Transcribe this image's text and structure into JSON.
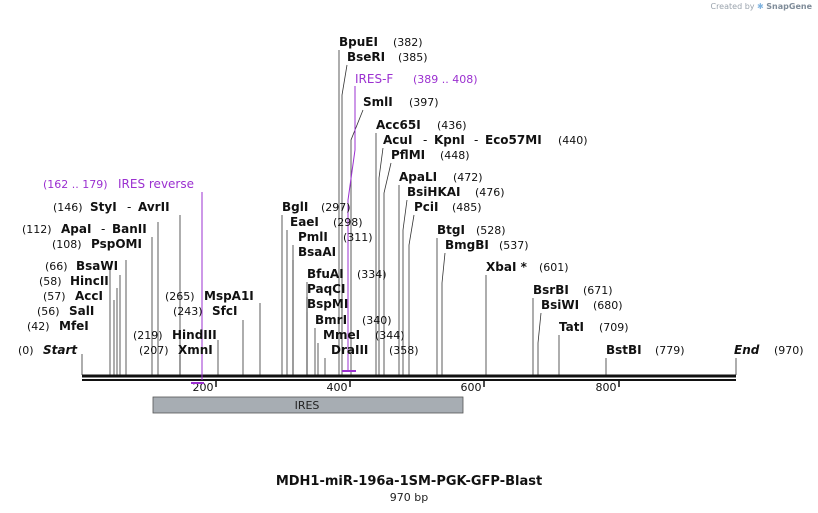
{
  "watermark": {
    "prefix": "Created by",
    "brand": "SnapGene"
  },
  "map": {
    "name": "MDH1-miR-196a-1SM-PGK-GFP-Blast",
    "length_label": "970 bp",
    "length": 970,
    "start_label": "Start",
    "start_pos": "(0)",
    "end_label": "End",
    "end_pos": "(970)",
    "ticks": [
      "200",
      "400",
      "600",
      "800"
    ],
    "feature_label": "IRES",
    "feature_color": "#a7adb3",
    "primer_color": "#9b30d0"
  },
  "primers": [
    {
      "name": "IRES reverse",
      "range": "(162 .. 179)"
    },
    {
      "name": "IRES-F",
      "range": "(389 .. 408)"
    }
  ],
  "enzymes_left": [
    {
      "name": "StyI",
      "pos": "(146)",
      "name2": "AvrII"
    },
    {
      "name": "ApaI",
      "pos": "(112)",
      "name2": "BanII"
    },
    {
      "name": "PspOMI",
      "pos": "(108)"
    },
    {
      "name": "BsaWI",
      "pos": "(66)"
    },
    {
      "name": "HincII",
      "pos": "(58)"
    },
    {
      "name": "AccI",
      "pos": "(57)"
    },
    {
      "name": "SalI",
      "pos": "(56)"
    },
    {
      "name": "MfeI",
      "pos": "(42)"
    },
    {
      "name": "MspA1I",
      "pos": "(265)"
    },
    {
      "name": "SfcI",
      "pos": "(243)"
    },
    {
      "name": "HindIII",
      "pos": "(219)"
    },
    {
      "name": "XmnI",
      "pos": "(207)"
    }
  ],
  "enzymes_center": [
    {
      "name": "BpuEI",
      "pos": "(382)"
    },
    {
      "name": "BseRI",
      "pos": "(385)"
    },
    {
      "name": "SmlI",
      "pos": "(397)"
    },
    {
      "name": "Acc65I",
      "pos": "(436)"
    },
    {
      "name": "AcuI",
      "name2": "KpnI",
      "name3": "Eco57MI",
      "pos": "(440)"
    },
    {
      "name": "PflMI",
      "pos": "(448)"
    },
    {
      "name": "ApaLI",
      "pos": "(472)"
    },
    {
      "name": "BsiHKAI",
      "pos": "(476)"
    },
    {
      "name": "PciI",
      "pos": "(485)"
    },
    {
      "name": "BglI",
      "pos": "(297)"
    },
    {
      "name": "EaeI",
      "pos": "(298)"
    },
    {
      "name": "PmlI",
      "pos": "(311)"
    },
    {
      "name": "BsaAI",
      "pos": ""
    },
    {
      "name": "BfuAI",
      "pos": "(334)"
    },
    {
      "name": "PaqCI",
      "pos": ""
    },
    {
      "name": "BspMI",
      "pos": ""
    },
    {
      "name": "BmrI",
      "pos": "(340)"
    },
    {
      "name": "MmeI",
      "pos": "(344)"
    },
    {
      "name": "DraIII",
      "pos": "(358)"
    }
  ],
  "enzymes_right": [
    {
      "name": "BtgI",
      "pos": "(528)"
    },
    {
      "name": "BmgBI",
      "pos": "(537)"
    },
    {
      "name": "XbaI *",
      "pos": "(601)"
    },
    {
      "name": "BsrBI",
      "pos": "(671)"
    },
    {
      "name": "BsiWI",
      "pos": "(680)"
    },
    {
      "name": "TatI",
      "pos": "(709)"
    },
    {
      "name": "BstBI",
      "pos": "(779)"
    }
  ]
}
